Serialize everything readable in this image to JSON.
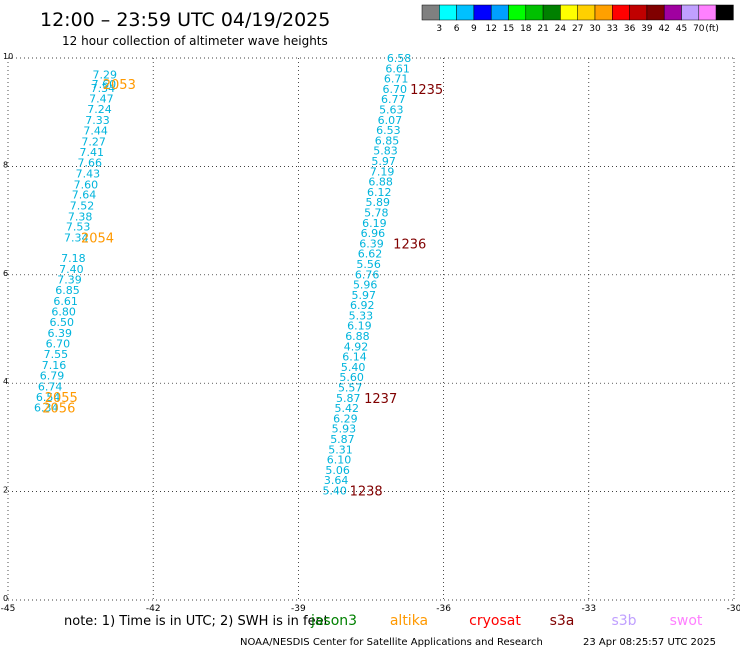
{
  "title": "12:00 – 23:59 UTC 04/19/2025",
  "subtitle": "12 hour collection of altimeter wave heights",
  "note": "note:  1) Time is in UTC; 2) SWH is in feet",
  "footer": {
    "credit": "NOAA/NESDIS Center for Satellite Applications and Research",
    "timestamp": "23 Apr 08:25:57 UTC 2025"
  },
  "colorbar": {
    "colors": [
      "#808080",
      "#00ffff",
      "#00c0ff",
      "#0000ff",
      "#00a0ff",
      "#00ff00",
      "#00c000",
      "#008000",
      "#ffff00",
      "#ffd000",
      "#ffa000",
      "#ff0000",
      "#c00000",
      "#800000",
      "#a000a0",
      "#c0a0ff",
      "#ff80ff",
      "#000000"
    ],
    "labels": [
      "3",
      "6",
      "9",
      "12",
      "15",
      "18",
      "21",
      "24",
      "27",
      "30",
      "33",
      "36",
      "39",
      "42",
      "45",
      "70",
      "(ft)"
    ]
  },
  "satellites": [
    {
      "name": "jason3",
      "color": "#008000"
    },
    {
      "name": "altika",
      "color": "#ff9900"
    },
    {
      "name": "cryosat",
      "color": "#ff0000"
    },
    {
      "name": "s3a",
      "color": "#800000"
    },
    {
      "name": "s3b",
      "color": "#c0a0ff"
    },
    {
      "name": "swot",
      "color": "#ff80ff"
    }
  ],
  "chart_data": {
    "type": "scatter",
    "title": "12:00 – 23:59 UTC 04/19/2025",
    "subtitle": "12 hour collection of altimeter wave heights",
    "xlim": [
      -45,
      -30
    ],
    "ylim": [
      0,
      10
    ],
    "x_ticks": [
      "-45",
      "-42",
      "-39",
      "-36",
      "-33",
      "-30"
    ],
    "y_ticks": [
      "0",
      "2",
      "4",
      "6",
      "8",
      "10"
    ],
    "grid": true,
    "units": "ft",
    "series": [
      {
        "name": "altika",
        "color": "#00b4dc",
        "points": [
          {
            "x": -43.0,
            "y": 9.7,
            "label": "7.29"
          },
          {
            "x": -43.02,
            "y": 9.52,
            "label": "7.60"
          },
          {
            "x": -43.04,
            "y": 9.45,
            "label": "7.34"
          },
          {
            "x": -43.07,
            "y": 9.25,
            "label": "7.47"
          },
          {
            "x": -43.11,
            "y": 9.06,
            "label": "7.24"
          },
          {
            "x": -43.15,
            "y": 8.86,
            "label": "7.33"
          },
          {
            "x": -43.19,
            "y": 8.66,
            "label": "7.44"
          },
          {
            "x": -43.23,
            "y": 8.46,
            "label": "7.27"
          },
          {
            "x": -43.27,
            "y": 8.27,
            "label": "7.41"
          },
          {
            "x": -43.31,
            "y": 8.07,
            "label": "7.66"
          },
          {
            "x": -43.35,
            "y": 7.87,
            "label": "7.43"
          },
          {
            "x": -43.39,
            "y": 7.67,
            "label": "7.60"
          },
          {
            "x": -43.43,
            "y": 7.48,
            "label": "7.64"
          },
          {
            "x": -43.47,
            "y": 7.28,
            "label": "7.52"
          },
          {
            "x": -43.51,
            "y": 7.08,
            "label": "7.38"
          },
          {
            "x": -43.55,
            "y": 6.89,
            "label": "7.53"
          },
          {
            "x": -43.59,
            "y": 6.69,
            "label": "7.34"
          },
          {
            "x": -43.65,
            "y": 6.31,
            "label": "7.18"
          },
          {
            "x": -43.69,
            "y": 6.11,
            "label": "7.40"
          },
          {
            "x": -43.73,
            "y": 5.91,
            "label": "7.39"
          },
          {
            "x": -43.77,
            "y": 5.72,
            "label": "6.85"
          },
          {
            "x": -43.81,
            "y": 5.52,
            "label": "6.61"
          },
          {
            "x": -43.85,
            "y": 5.32,
            "label": "6.80"
          },
          {
            "x": -43.89,
            "y": 5.13,
            "label": "6.50"
          },
          {
            "x": -43.93,
            "y": 4.93,
            "label": "6.39"
          },
          {
            "x": -43.97,
            "y": 4.73,
            "label": "6.70"
          },
          {
            "x": -44.01,
            "y": 4.54,
            "label": "7.55"
          },
          {
            "x": -44.05,
            "y": 4.34,
            "label": "7.16"
          },
          {
            "x": -44.09,
            "y": 4.14,
            "label": "6.79"
          },
          {
            "x": -44.13,
            "y": 3.94,
            "label": "6.74"
          },
          {
            "x": -44.17,
            "y": 3.75,
            "label": "6.54"
          },
          {
            "x": -44.21,
            "y": 3.55,
            "label": "6.34"
          }
        ]
      },
      {
        "name": "s3a",
        "color": "#00b4dc",
        "points": [
          {
            "x": -36.92,
            "y": 10.0,
            "label": "6.58"
          },
          {
            "x": -36.95,
            "y": 9.81,
            "label": "6.61"
          },
          {
            "x": -36.98,
            "y": 9.62,
            "label": "6.71"
          },
          {
            "x": -37.01,
            "y": 9.43,
            "label": "6.70"
          },
          {
            "x": -37.04,
            "y": 9.24,
            "label": "6.77"
          },
          {
            "x": -37.08,
            "y": 9.05,
            "label": "5.63"
          },
          {
            "x": -37.11,
            "y": 8.86,
            "label": "6.07"
          },
          {
            "x": -37.14,
            "y": 8.67,
            "label": "6.53"
          },
          {
            "x": -37.17,
            "y": 8.48,
            "label": "6.85"
          },
          {
            "x": -37.2,
            "y": 8.29,
            "label": "5.83"
          },
          {
            "x": -37.24,
            "y": 8.1,
            "label": "5.97"
          },
          {
            "x": -37.27,
            "y": 7.91,
            "label": "7.19"
          },
          {
            "x": -37.3,
            "y": 7.72,
            "label": "6.88"
          },
          {
            "x": -37.33,
            "y": 7.53,
            "label": "6.12"
          },
          {
            "x": -37.36,
            "y": 7.34,
            "label": "5.89"
          },
          {
            "x": -37.39,
            "y": 7.15,
            "label": "5.78"
          },
          {
            "x": -37.43,
            "y": 6.96,
            "label": "6.19"
          },
          {
            "x": -37.46,
            "y": 6.77,
            "label": "6.96"
          },
          {
            "x": -37.49,
            "y": 6.58,
            "label": "6.39"
          },
          {
            "x": -37.52,
            "y": 6.39,
            "label": "6.62"
          },
          {
            "x": -37.55,
            "y": 6.2,
            "label": "5.56"
          },
          {
            "x": -37.58,
            "y": 6.01,
            "label": "6.76"
          },
          {
            "x": -37.62,
            "y": 5.82,
            "label": "5.96"
          },
          {
            "x": -37.65,
            "y": 5.63,
            "label": "5.97"
          },
          {
            "x": -37.68,
            "y": 5.44,
            "label": "6.92"
          },
          {
            "x": -37.71,
            "y": 5.25,
            "label": "5.33"
          },
          {
            "x": -37.74,
            "y": 5.06,
            "label": "6.19"
          },
          {
            "x": -37.78,
            "y": 4.87,
            "label": "6.88"
          },
          {
            "x": -37.81,
            "y": 4.68,
            "label": "4.92"
          },
          {
            "x": -37.84,
            "y": 4.49,
            "label": "6.14"
          },
          {
            "x": -37.87,
            "y": 4.3,
            "label": "5.40"
          },
          {
            "x": -37.9,
            "y": 4.11,
            "label": "5.60"
          },
          {
            "x": -37.93,
            "y": 3.92,
            "label": "5.57"
          },
          {
            "x": -37.97,
            "y": 3.73,
            "label": "5.87"
          },
          {
            "x": -38.0,
            "y": 3.54,
            "label": "5.42"
          },
          {
            "x": -38.03,
            "y": 3.35,
            "label": "6.29"
          },
          {
            "x": -38.06,
            "y": 3.16,
            "label": "5.93"
          },
          {
            "x": -38.09,
            "y": 2.97,
            "label": "5.87"
          },
          {
            "x": -38.13,
            "y": 2.78,
            "label": "5.31"
          },
          {
            "x": -38.16,
            "y": 2.59,
            "label": "6.10"
          },
          {
            "x": -38.19,
            "y": 2.4,
            "label": "5.06"
          },
          {
            "x": -38.22,
            "y": 2.21,
            "label": "3.64"
          },
          {
            "x": -38.25,
            "y": 2.02,
            "label": "5.40"
          }
        ]
      }
    ],
    "time_labels": [
      {
        "x": -42.7,
        "y": 9.52,
        "label": "2053",
        "color": "#ff9900"
      },
      {
        "x": -43.15,
        "y": 6.69,
        "label": "2054",
        "color": "#ff9900"
      },
      {
        "x": -43.9,
        "y": 3.75,
        "label": "2055",
        "color": "#ff9900"
      },
      {
        "x": -43.95,
        "y": 3.55,
        "label": "2056",
        "color": "#ff9900"
      },
      {
        "x": -36.35,
        "y": 9.43,
        "label": "1235",
        "color": "#800000"
      },
      {
        "x": -36.7,
        "y": 6.58,
        "label": "1236",
        "color": "#800000"
      },
      {
        "x": -37.3,
        "y": 3.73,
        "label": "1237",
        "color": "#800000"
      },
      {
        "x": -37.6,
        "y": 2.02,
        "label": "1238",
        "color": "#800000"
      }
    ]
  }
}
